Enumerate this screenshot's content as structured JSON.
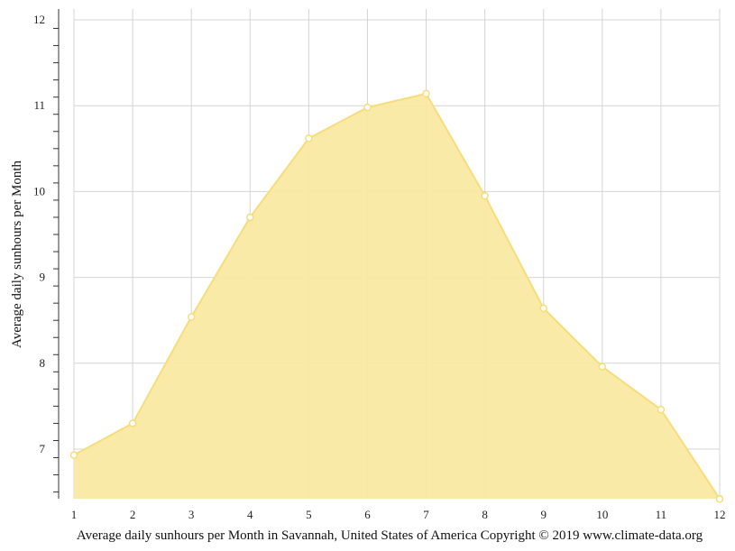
{
  "chart_data": {
    "type": "area",
    "x": [
      1,
      2,
      3,
      4,
      5,
      6,
      7,
      8,
      9,
      10,
      11,
      12
    ],
    "values": [
      6.93,
      7.3,
      8.54,
      9.7,
      10.62,
      10.98,
      11.14,
      9.95,
      8.64,
      7.96,
      7.46,
      6.42
    ],
    "xlabel": "Average daily sunhours per Month in Savannah, United States of America Copyright © 2019 www.climate-data.org",
    "ylabel": "Average daily sunhours per Month",
    "xticks": [
      "1",
      "2",
      "3",
      "4",
      "5",
      "6",
      "7",
      "8",
      "9",
      "10",
      "11",
      "12"
    ],
    "yticks": [
      "7",
      "8",
      "9",
      "10",
      "11",
      "12"
    ],
    "xlim": [
      1,
      12
    ],
    "ylim": [
      6.42,
      12.12
    ],
    "grid": true,
    "colors": {
      "fill": "#f9e9a3",
      "line": "#f7dd7a",
      "marker_fill": "#ffffff",
      "grid": "#d4d4d4"
    }
  }
}
